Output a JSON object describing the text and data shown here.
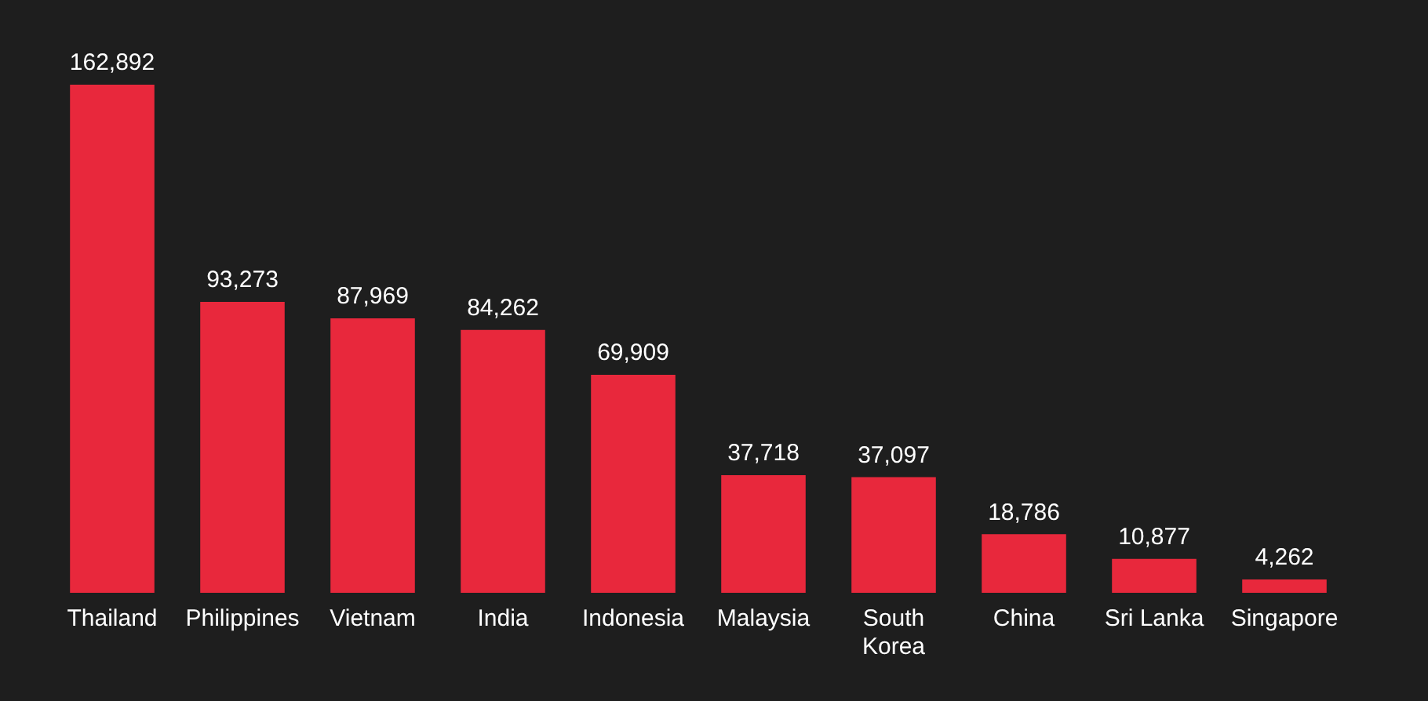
{
  "chart_data": {
    "type": "bar",
    "categories": [
      "Thailand",
      "Philippines",
      "Vietnam",
      "India",
      "Indonesia",
      "Malaysia",
      "South Korea",
      "China",
      "Sri Lanka",
      "Singapore"
    ],
    "values": [
      162892,
      93273,
      87969,
      84262,
      69909,
      37718,
      37097,
      18786,
      10877,
      4262
    ],
    "value_labels": [
      "162,892",
      "93,273",
      "87,969",
      "84,262",
      "69,909",
      "37,718",
      "37,097",
      "18,786",
      "10,877",
      "4,262"
    ],
    "color": "#e8283c"
  }
}
